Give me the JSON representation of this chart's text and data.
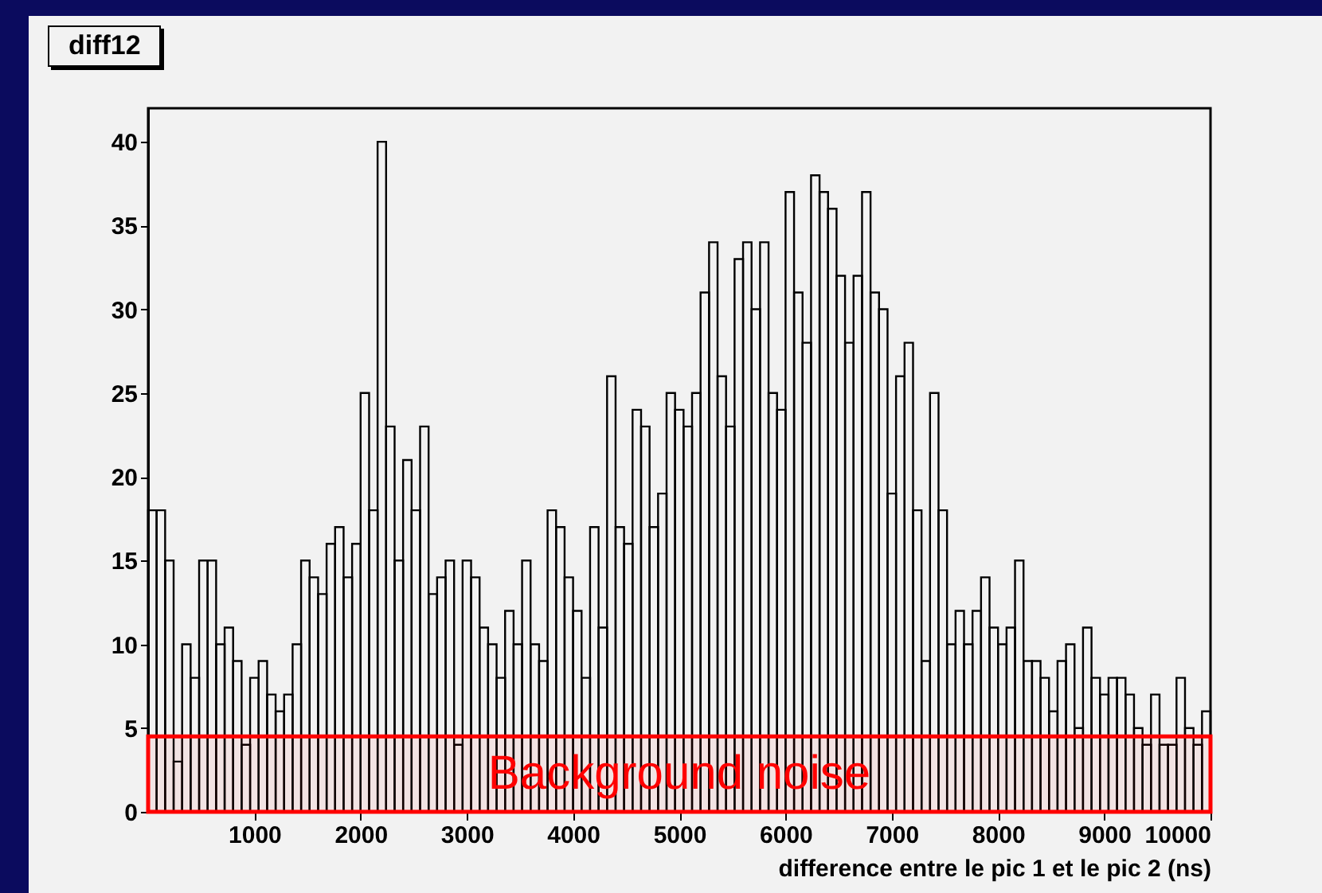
{
  "chart_data": {
    "type": "histogram",
    "title": "diff12",
    "xlabel": "difference entre le pic 1 et le pic 2 (ns)",
    "bins": [
      0,
      80,
      160,
      240,
      320,
      400,
      480,
      560,
      640,
      720,
      800,
      880,
      960,
      1040,
      1120,
      1200,
      1280,
      1360,
      1440,
      1520,
      1600,
      1680,
      1760,
      1840,
      1920,
      2000,
      2080,
      2160,
      2240,
      2320,
      2400,
      2480,
      2560,
      2640,
      2720,
      2800,
      2880,
      2960,
      3040,
      3120,
      3200,
      3280,
      3360,
      3440,
      3520,
      3600,
      3680,
      3760,
      3840,
      3920,
      4000,
      4080,
      4160,
      4240,
      4320,
      4400,
      4480,
      4560,
      4640,
      4720,
      4800,
      4880,
      4960,
      5040,
      5120,
      5200,
      5280,
      5360,
      5440,
      5520,
      5600,
      5680,
      5760,
      5840,
      5920,
      6000,
      6080,
      6160,
      6240,
      6320,
      6400,
      6480,
      6560,
      6640,
      6720,
      6800,
      6880,
      6960,
      7040,
      7120,
      7200,
      7280,
      7360,
      7440,
      7520,
      7600,
      7680,
      7760,
      7840,
      7920,
      8000,
      8080,
      8160,
      8240,
      8320,
      8400,
      8480,
      8560,
      8640,
      8720,
      8800,
      8880,
      8960,
      9040,
      9120,
      9200,
      9280,
      9360,
      9440,
      9520,
      9600,
      9680,
      9760,
      9840,
      9920,
      10000
    ],
    "values": [
      18,
      18,
      15,
      3,
      10,
      8,
      15,
      15,
      10,
      11,
      9,
      4,
      8,
      9,
      7,
      6,
      7,
      10,
      15,
      14,
      13,
      16,
      17,
      14,
      16,
      25,
      18,
      40,
      23,
      15,
      21,
      18,
      23,
      13,
      14,
      15,
      4,
      15,
      14,
      11,
      10,
      8,
      12,
      10,
      15,
      10,
      9,
      18,
      17,
      14,
      12,
      8,
      17,
      11,
      26,
      17,
      16,
      24,
      23,
      17,
      19,
      25,
      24,
      23,
      25,
      31,
      34,
      26,
      23,
      33,
      34,
      30,
      34,
      25,
      24,
      37,
      31,
      28,
      38,
      37,
      36,
      32,
      28,
      32,
      37,
      31,
      30,
      19,
      26,
      28,
      18,
      9,
      25,
      18,
      10,
      12,
      10,
      12,
      14,
      11,
      10,
      11,
      15,
      9,
      9,
      8,
      6,
      9,
      10,
      5,
      11,
      8,
      7,
      8,
      8,
      7,
      5,
      4,
      7,
      4,
      4,
      8,
      5,
      4,
      6
    ],
    "color": "#000000",
    "xlim": [
      0,
      10000
    ],
    "xticks": [
      1000,
      2000,
      3000,
      4000,
      5000,
      6000,
      7000,
      8000,
      9000,
      10000
    ],
    "ylim": [
      0,
      42
    ],
    "yticks": [
      0,
      5,
      10,
      15,
      20,
      25,
      30,
      35,
      40
    ],
    "bands": [
      {
        "axis": "y",
        "from": 0,
        "to": 4.5,
        "label": "Background noise",
        "color": "#ff0000"
      }
    ]
  }
}
